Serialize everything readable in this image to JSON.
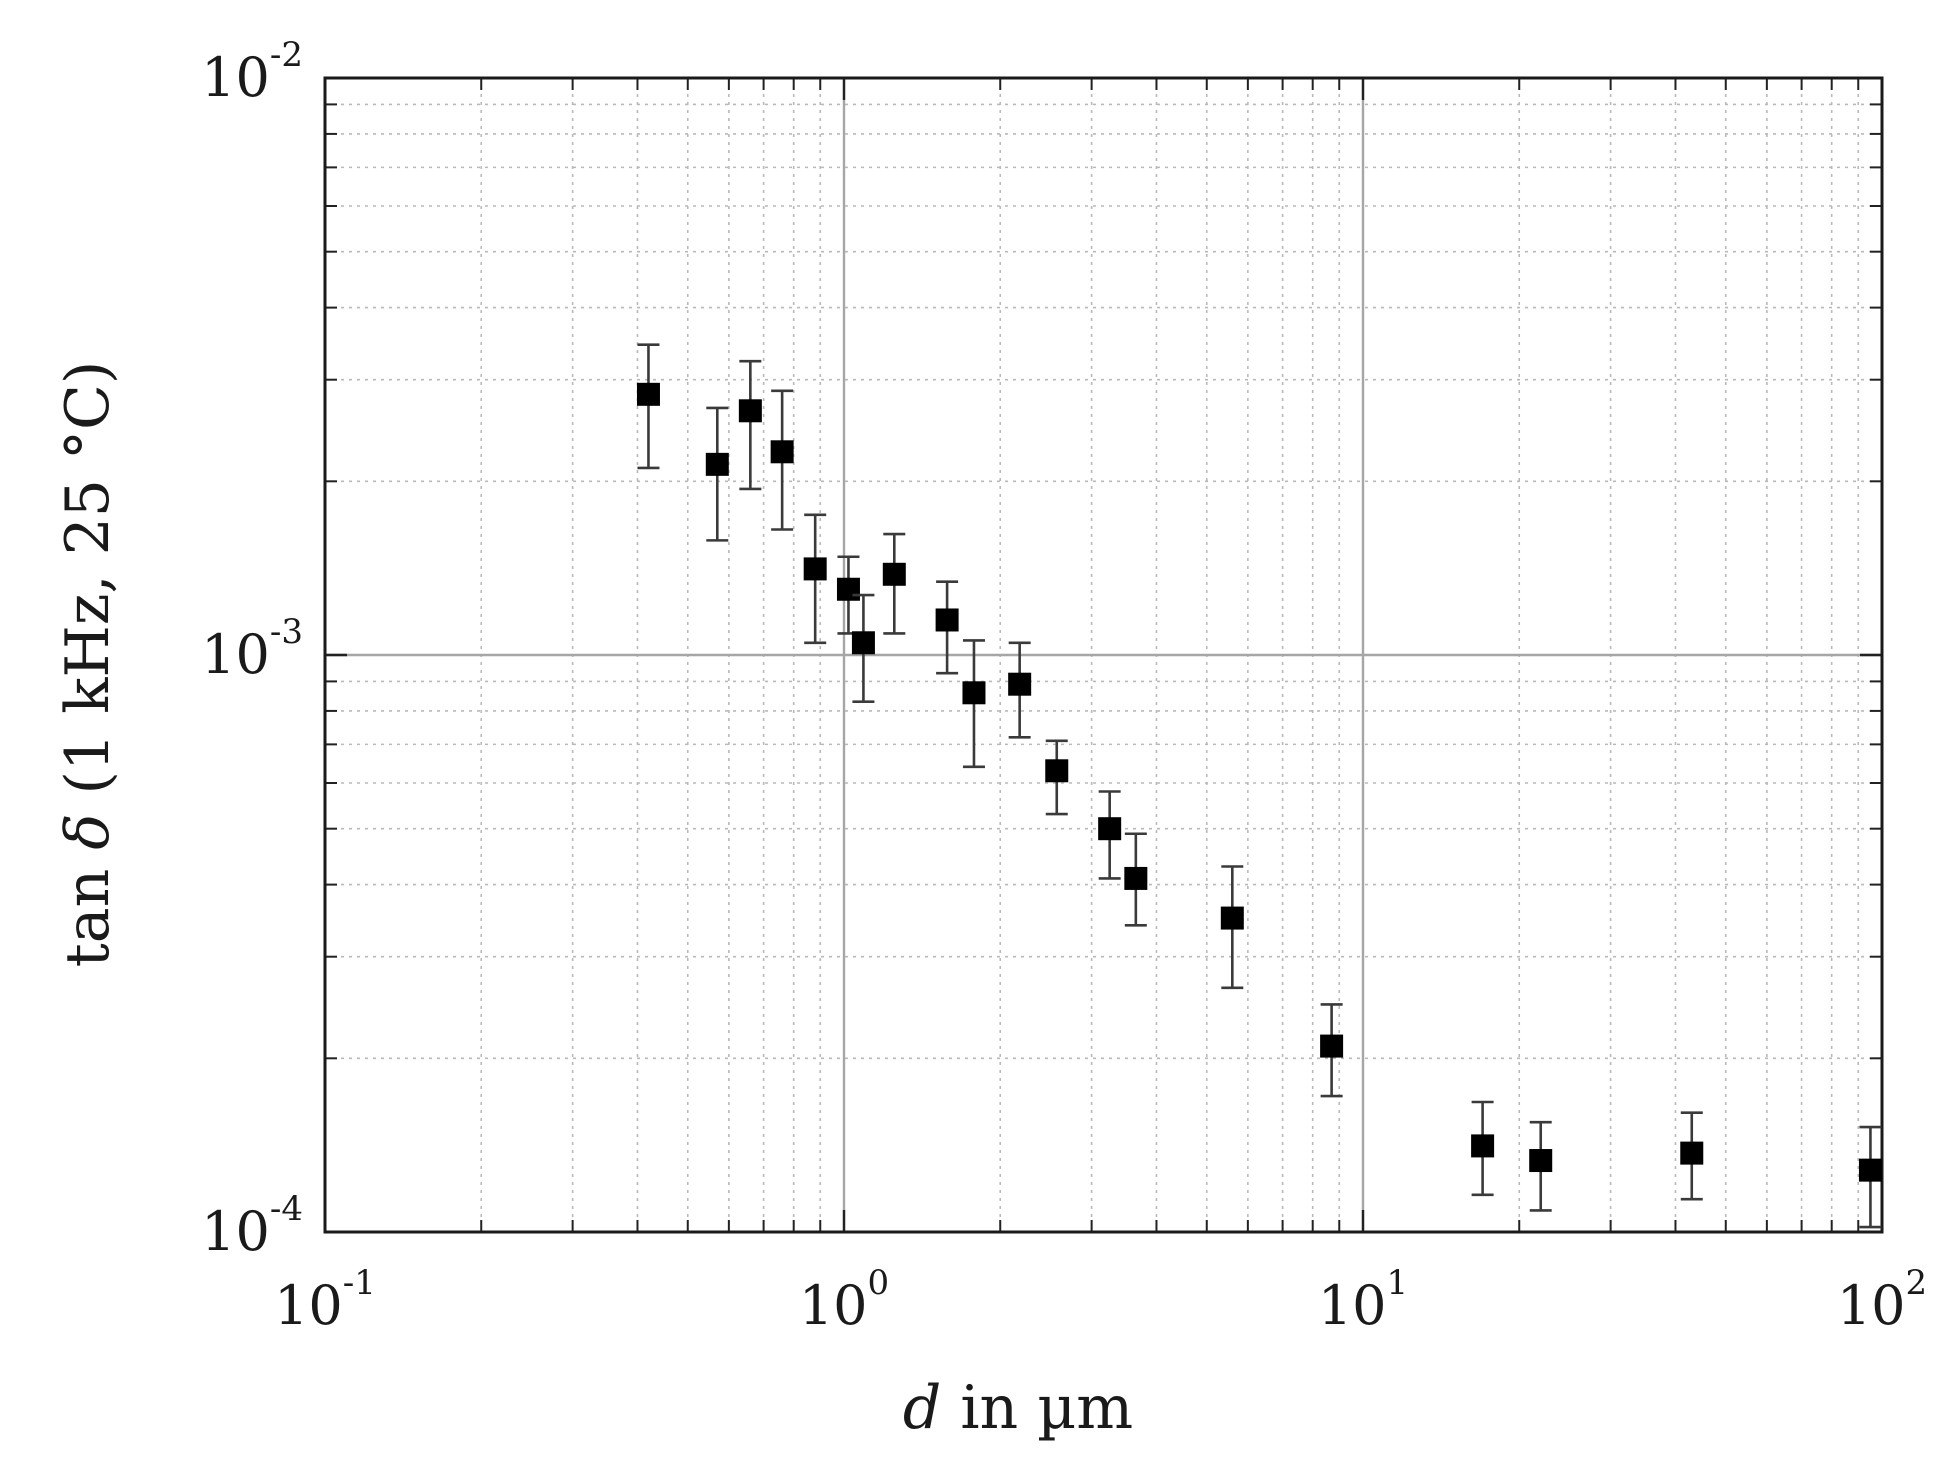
{
  "chart_data": {
    "type": "scatter",
    "title": "",
    "xlabel": {
      "var": "d",
      "rest": " in µm"
    },
    "ylabel": {
      "pre": "tan ",
      "var": "δ",
      "rest": " (1 kHz, 25 °C)"
    },
    "xscale": "log",
    "yscale": "log",
    "xlim": [
      0.1,
      100
    ],
    "ylim": [
      0.0001,
      0.01
    ],
    "grid": true,
    "legend": "none",
    "x_ticks": [
      {
        "base": "10",
        "exp": "-1",
        "value": 0.1
      },
      {
        "base": "10",
        "exp": "0",
        "value": 1
      },
      {
        "base": "10",
        "exp": "1",
        "value": 10
      },
      {
        "base": "10",
        "exp": "2",
        "value": 100
      }
    ],
    "y_ticks": [
      {
        "base": "10",
        "exp": "-4",
        "value": 0.0001
      },
      {
        "base": "10",
        "exp": "-3",
        "value": 0.001
      },
      {
        "base": "10",
        "exp": "-2",
        "value": 0.01
      }
    ],
    "marker": "square",
    "marker_color": "#000000",
    "points": [
      {
        "x": 0.42,
        "y": 0.00283,
        "y_err_low": 0.00211,
        "y_err_high": 0.00345
      },
      {
        "x": 0.57,
        "y": 0.00214,
        "y_err_low": 0.00158,
        "y_err_high": 0.00268
      },
      {
        "x": 0.66,
        "y": 0.00265,
        "y_err_low": 0.00194,
        "y_err_high": 0.00323
      },
      {
        "x": 0.76,
        "y": 0.00225,
        "y_err_low": 0.00165,
        "y_err_high": 0.00287
      },
      {
        "x": 0.88,
        "y": 0.00141,
        "y_err_low": 0.00105,
        "y_err_high": 0.00175
      },
      {
        "x": 1.02,
        "y": 0.0013,
        "y_err_low": 0.00109,
        "y_err_high": 0.00148
      },
      {
        "x": 1.09,
        "y": 0.00105,
        "y_err_low": 0.00083,
        "y_err_high": 0.00127
      },
      {
        "x": 1.25,
        "y": 0.00138,
        "y_err_low": 0.00109,
        "y_err_high": 0.00162
      },
      {
        "x": 1.58,
        "y": 0.00115,
        "y_err_low": 0.00093,
        "y_err_high": 0.00134
      },
      {
        "x": 1.78,
        "y": 0.00086,
        "y_err_low": 0.00064,
        "y_err_high": 0.00106
      },
      {
        "x": 2.18,
        "y": 0.00089,
        "y_err_low": 0.00072,
        "y_err_high": 0.00105
      },
      {
        "x": 2.57,
        "y": 0.00063,
        "y_err_low": 0.00053,
        "y_err_high": 0.00071
      },
      {
        "x": 3.25,
        "y": 0.0005,
        "y_err_low": 0.00041,
        "y_err_high": 0.00058
      },
      {
        "x": 3.65,
        "y": 0.00041,
        "y_err_low": 0.00034,
        "y_err_high": 0.00049
      },
      {
        "x": 5.6,
        "y": 0.00035,
        "y_err_low": 0.000265,
        "y_err_high": 0.00043
      },
      {
        "x": 8.7,
        "y": 0.00021,
        "y_err_low": 0.000172,
        "y_err_high": 0.000248
      },
      {
        "x": 17.0,
        "y": 0.000141,
        "y_err_low": 0.000116,
        "y_err_high": 0.000168
      },
      {
        "x": 22.0,
        "y": 0.000133,
        "y_err_low": 0.000109,
        "y_err_high": 0.000155
      },
      {
        "x": 43.0,
        "y": 0.000137,
        "y_err_low": 0.000114,
        "y_err_high": 0.000161
      },
      {
        "x": 95.0,
        "y": 0.000128,
        "y_err_low": 0.000102,
        "y_err_high": 0.000152
      }
    ]
  }
}
